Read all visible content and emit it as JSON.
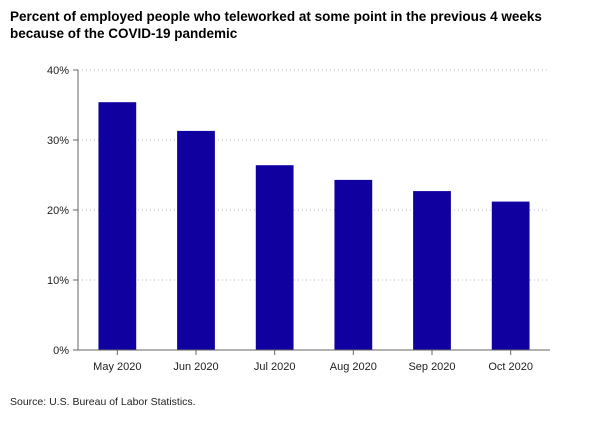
{
  "chart_data": {
    "type": "bar",
    "title": "Percent of employed people who teleworked at some point in the previous 4 weeks because of the COVID-19 pandemic",
    "categories": [
      "May 2020",
      "Jun 2020",
      "Jul 2020",
      "Aug 2020",
      "Sep 2020",
      "Oct 2020"
    ],
    "values": [
      35.4,
      31.3,
      26.4,
      24.3,
      22.7,
      21.2
    ],
    "ylim": [
      0,
      40
    ],
    "yticks": [
      0,
      10,
      20,
      30,
      40
    ],
    "ytick_labels": [
      "0%",
      "10%",
      "20%",
      "30%",
      "40%"
    ],
    "bar_color": "#1100a0",
    "grid": "horizontal-dotted",
    "legend": "none"
  },
  "footer": {
    "source": "Source: U.S. Bureau of Labor Statistics."
  }
}
